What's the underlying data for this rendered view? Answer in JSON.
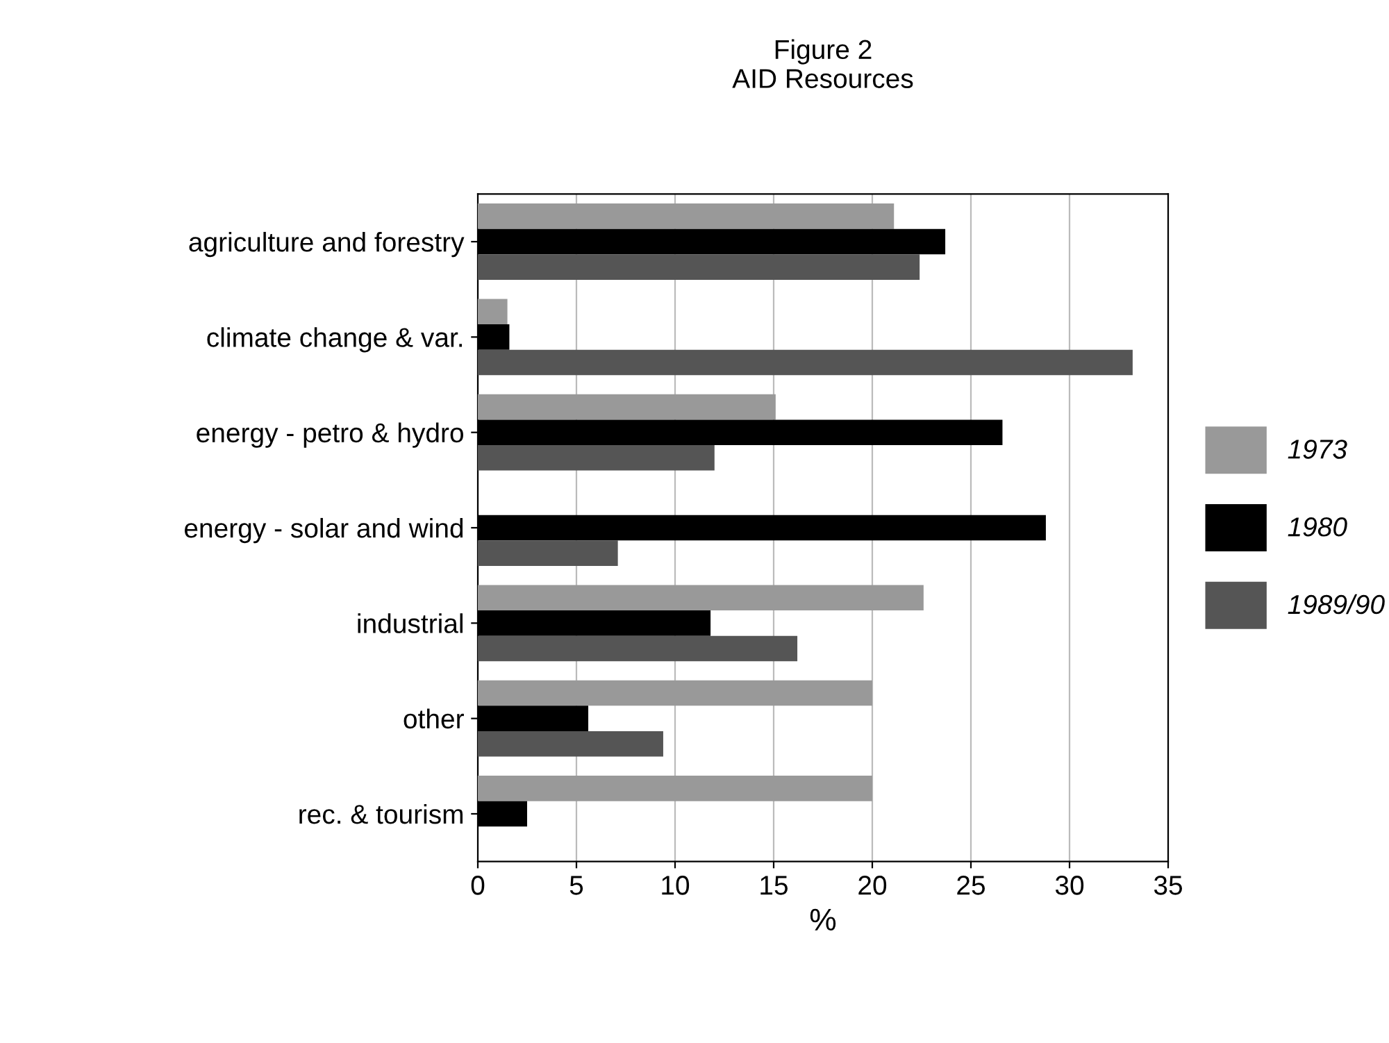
{
  "chart_data": {
    "type": "bar",
    "orientation": "horizontal",
    "title": "Figure 2\nAID Resources",
    "xlabel": "%",
    "categories": [
      "agriculture and forestry",
      "climate change & var.",
      "energy - petro & hydro",
      "energy - solar and wind",
      "industrial",
      "other",
      "rec. & tourism"
    ],
    "series": [
      {
        "name": "1973",
        "color": "#999999",
        "values": [
          21.1,
          1.5,
          15.1,
          0,
          22.6,
          20,
          20
        ]
      },
      {
        "name": "1980",
        "color": "#000000",
        "values": [
          23.7,
          1.6,
          26.6,
          28.8,
          11.8,
          5.6,
          2.5
        ]
      },
      {
        "name": "1989/90",
        "color": "#555555",
        "values": [
          22.4,
          33.2,
          12.0,
          7.1,
          16.2,
          9.4,
          0
        ]
      }
    ],
    "xlim": [
      0,
      35
    ],
    "xticks": [
      0,
      5,
      10,
      15,
      20,
      25,
      30,
      35
    ],
    "grid": "x",
    "legend": "right"
  }
}
